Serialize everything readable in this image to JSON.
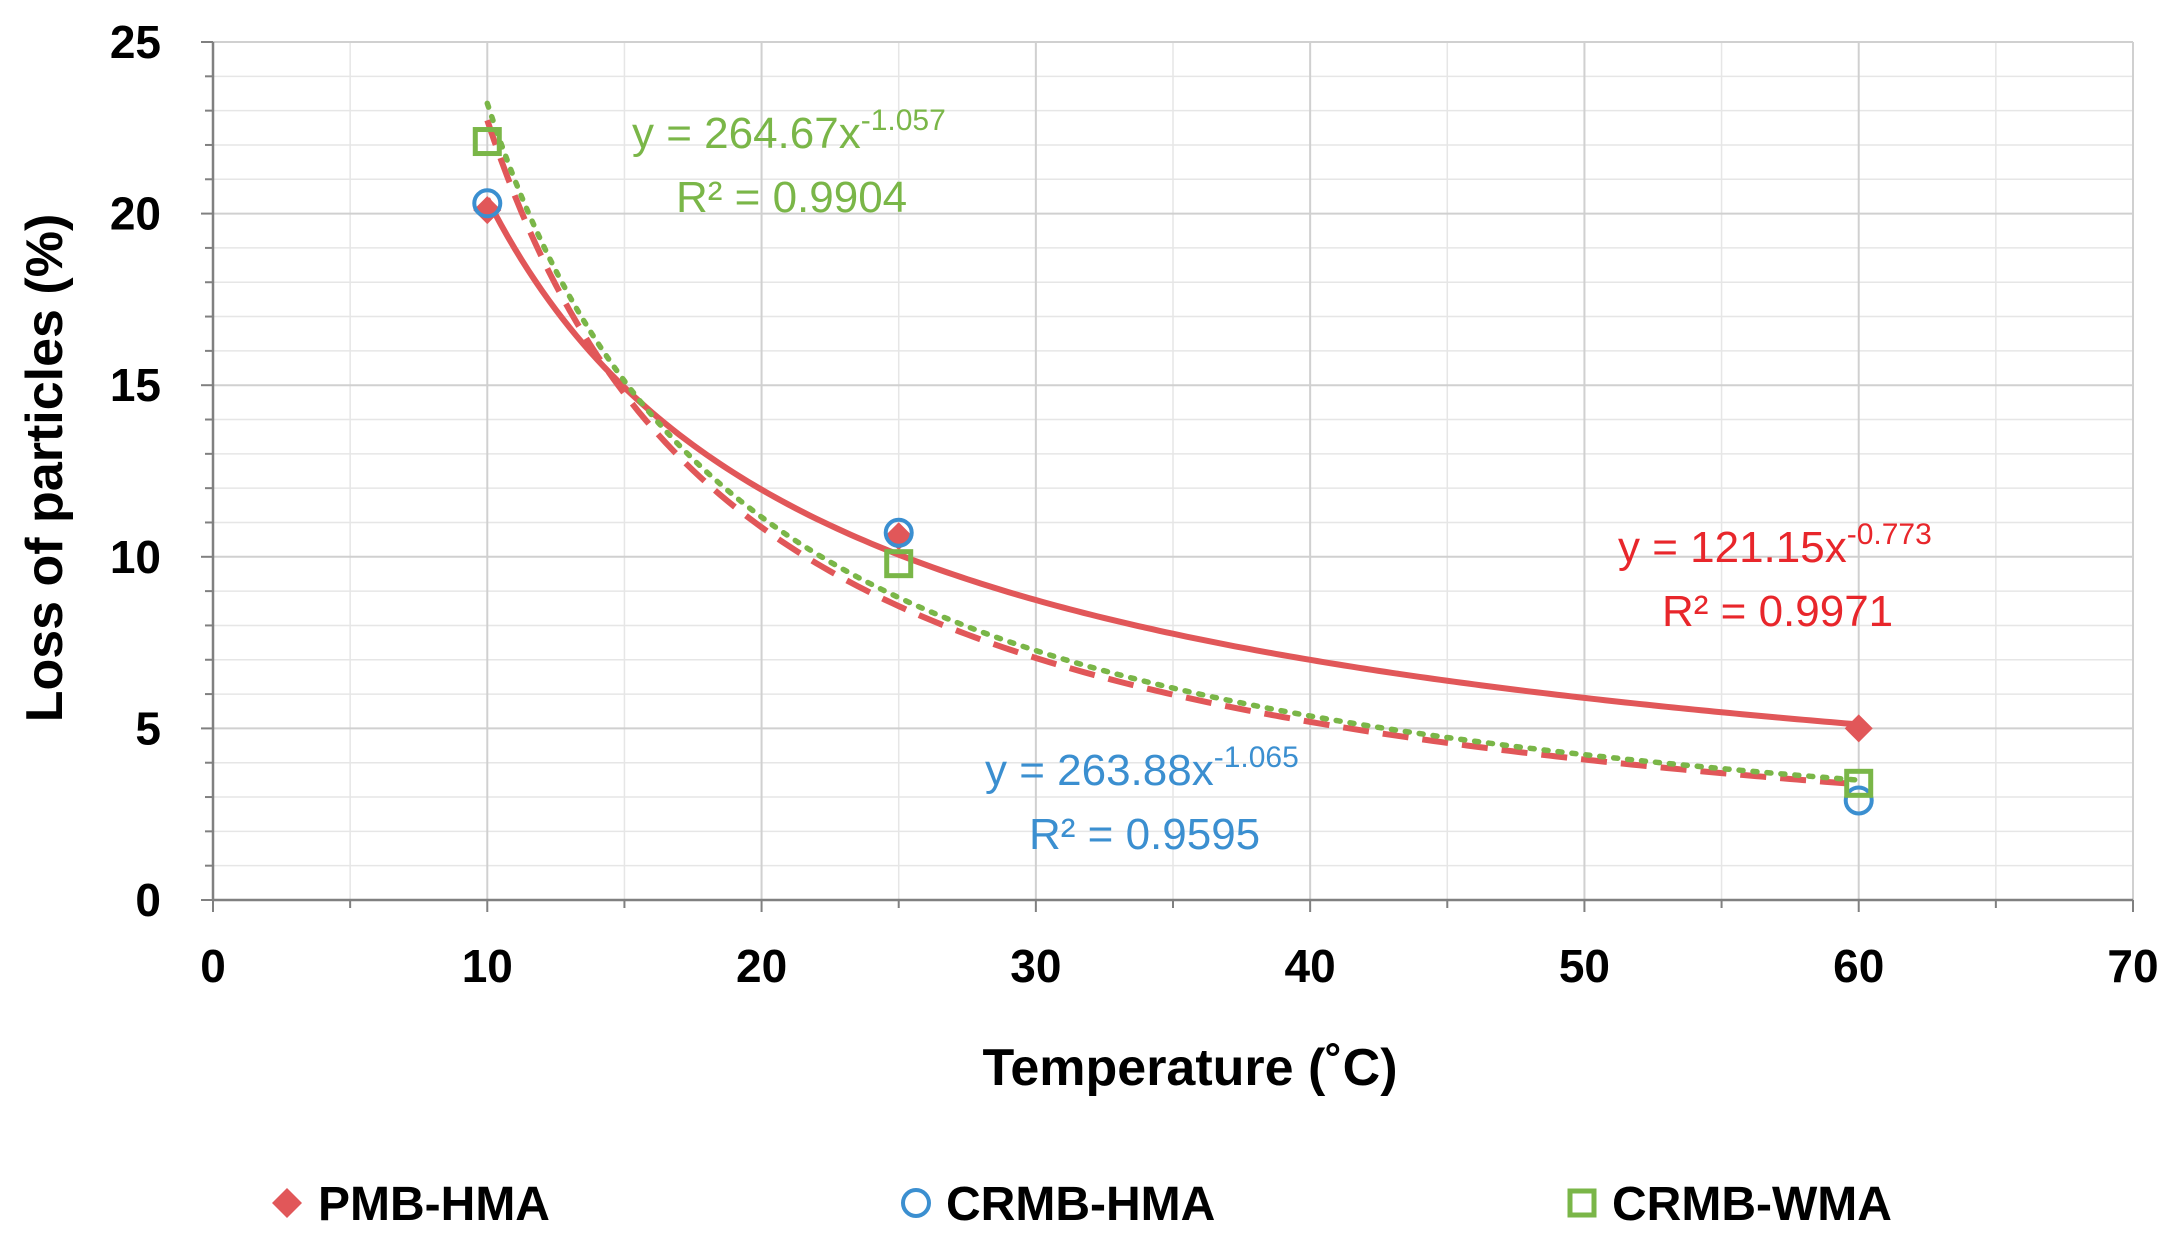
{
  "chart_data": {
    "type": "scatter",
    "title": "",
    "xlabel": "Temperature (˚C)",
    "ylabel": "Loss of particles (%)",
    "xlim": [
      0,
      70
    ],
    "ylim": [
      0,
      25
    ],
    "x_ticks": [
      "0",
      "10",
      "20",
      "30",
      "40",
      "50",
      "60",
      "70"
    ],
    "y_ticks": [
      "0",
      "5",
      "10",
      "15",
      "20",
      "25"
    ],
    "grid": true,
    "legend_position": "bottom",
    "series": [
      {
        "name": "PMB-HMA",
        "marker": "diamond",
        "color": "#E15759",
        "x": [
          10,
          25,
          60
        ],
        "y": [
          20.1,
          10.6,
          5.0
        ],
        "trendline": {
          "kind": "power",
          "a": 121.15,
          "b": -0.773,
          "style": "solid",
          "color": "#E15759",
          "equation_prefix": "y = 121.15x",
          "equation_exponent": "-0.773",
          "r2_label": "R² = 0.9971"
        }
      },
      {
        "name": "CRMB-HMA",
        "marker": "circle",
        "color": "#3B8FD0",
        "x": [
          10,
          25,
          60
        ],
        "y": [
          20.3,
          10.7,
          2.9
        ],
        "trendline": {
          "kind": "power",
          "a": 263.88,
          "b": -1.065,
          "style": "dashed",
          "color": "#E15759",
          "equation_prefix": "y = 263.88x",
          "equation_exponent": "-1.065",
          "r2_label": "R² = 0.9595"
        }
      },
      {
        "name": "CRMB-WMA",
        "marker": "square",
        "color": "#7AB648",
        "x": [
          10,
          25,
          60
        ],
        "y": [
          22.1,
          9.8,
          3.4
        ],
        "trendline": {
          "kind": "power",
          "a": 264.67,
          "b": -1.057,
          "style": "dotted",
          "color": "#7AB648",
          "equation_prefix": "y = 264.67x",
          "equation_exponent": "-1.057",
          "r2_label": "R² = 0.9904"
        }
      }
    ]
  },
  "annotations": {
    "wma_eq_color": "#7AB648",
    "hma_crmb_eq_color": "#3B8FD0",
    "pmb_eq_color": "#E8262B"
  }
}
